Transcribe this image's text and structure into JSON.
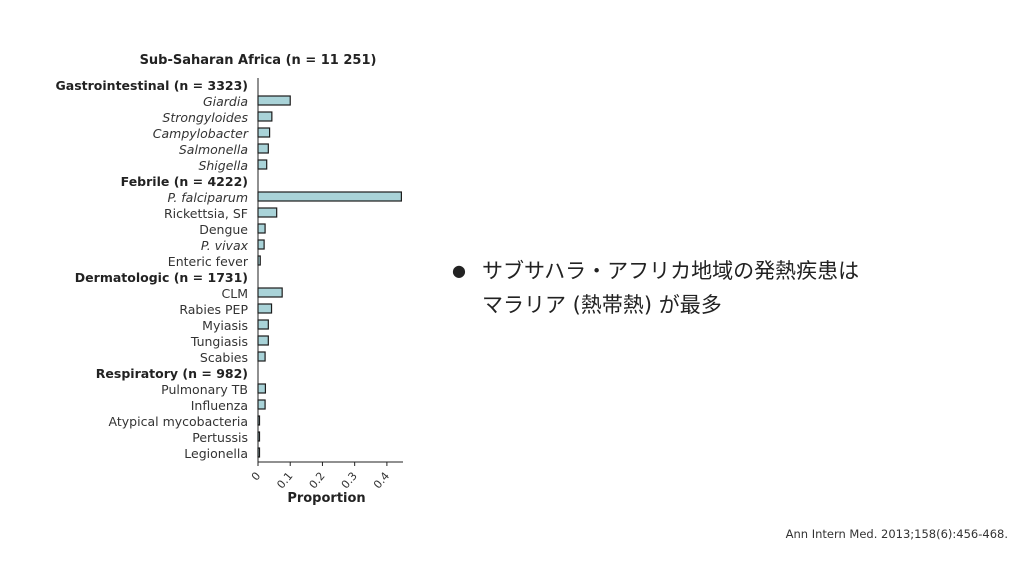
{
  "chart_data": {
    "type": "bar",
    "orientation": "horizontal",
    "title": "Sub-Saharan Africa (n = 11 251)",
    "xlabel": "Proportion",
    "xlim": [
      0,
      0.45
    ],
    "xticks": [
      "0",
      "0.1",
      "0.2",
      "0.3",
      "0.4"
    ],
    "bar_color": "#a9d3d8",
    "groups": [
      {
        "name": "Gastrointestinal (n = 3323)",
        "items": [
          {
            "label": "Giardia",
            "value": 0.1,
            "italic": true
          },
          {
            "label": "Strongyloides",
            "value": 0.043,
            "italic": true
          },
          {
            "label": "Campylobacter",
            "value": 0.036,
            "italic": true
          },
          {
            "label": "Salmonella",
            "value": 0.032,
            "italic": true
          },
          {
            "label": "Shigella",
            "value": 0.027,
            "italic": true
          }
        ]
      },
      {
        "name": "Febrile (n = 4222)",
        "items": [
          {
            "label": "P. falciparum",
            "value": 0.445,
            "italic": true
          },
          {
            "label": "Rickettsia, SF",
            "value": 0.058,
            "italic": false
          },
          {
            "label": "Dengue",
            "value": 0.022,
            "italic": false
          },
          {
            "label": "P. vivax",
            "value": 0.019,
            "italic": true
          },
          {
            "label": "Enteric fever",
            "value": 0.007,
            "italic": false
          }
        ]
      },
      {
        "name": "Dermatologic (n = 1731)",
        "items": [
          {
            "label": "CLM",
            "value": 0.075,
            "italic": false
          },
          {
            "label": "Rabies PEP",
            "value": 0.042,
            "italic": false
          },
          {
            "label": "Myiasis",
            "value": 0.032,
            "italic": false
          },
          {
            "label": "Tungiasis",
            "value": 0.032,
            "italic": false
          },
          {
            "label": "Scabies",
            "value": 0.022,
            "italic": false
          }
        ]
      },
      {
        "name": "Respiratory (n = 982)",
        "items": [
          {
            "label": "Pulmonary TB",
            "value": 0.023,
            "italic": false
          },
          {
            "label": "Influenza",
            "value": 0.022,
            "italic": false
          },
          {
            "label": "Atypical mycobacteria",
            "value": 0.003,
            "italic": false
          },
          {
            "label": "Pertussis",
            "value": 0.002,
            "italic": false
          },
          {
            "label": "Legionella",
            "value": 0.002,
            "italic": false
          }
        ]
      }
    ]
  },
  "bullet": {
    "line1": "サブサハラ・アフリカ地域の発熱疾患は",
    "line2": "マラリア (熱帯熱) が最多"
  },
  "citation": "Ann Intern Med. 2013;158(6):456-468."
}
